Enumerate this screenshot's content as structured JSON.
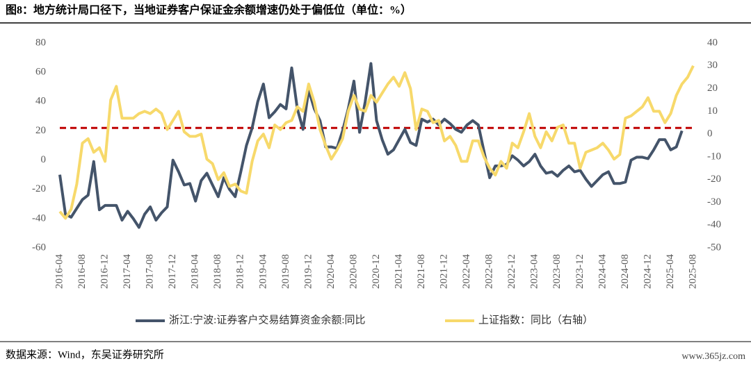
{
  "chart_data": {
    "type": "line",
    "title": "图8：地方统计局口径下，当地证券客户保证金余额增速仍处于偏低位（单位：%）",
    "source": "数据来源：Wind，东吴证券研究所",
    "watermark": "www.365jz.com",
    "categories": [
      "2016-04",
      null,
      null,
      null,
      "2016-08",
      null,
      null,
      null,
      "2016-12",
      null,
      null,
      null,
      "2017-04",
      null,
      null,
      null,
      "2017-08",
      null,
      null,
      null,
      "2017-12",
      null,
      null,
      null,
      "2018-04",
      null,
      null,
      null,
      "2018-08",
      null,
      null,
      null,
      "2018-12",
      null,
      null,
      null,
      "2019-04",
      null,
      null,
      null,
      "2019-08",
      null,
      null,
      null,
      "2019-12",
      null,
      null,
      null,
      "2020-04",
      null,
      null,
      null,
      "2020-08",
      null,
      null,
      null,
      "2020-12",
      null,
      null,
      null,
      "2021-04",
      null,
      null,
      null,
      "2021-08",
      null,
      null,
      null,
      "2021-12",
      null,
      null,
      null,
      "2022-04",
      null,
      null,
      null,
      "2022-08",
      null,
      null,
      null,
      "2022-12",
      null,
      null,
      null,
      "2023-04",
      null,
      null,
      null,
      "2023-08",
      null,
      null,
      null,
      "2023-12",
      null,
      null,
      null,
      "2024-04",
      null,
      null,
      null,
      "2024-08",
      null,
      null,
      null,
      "2024-12",
      null,
      null,
      null,
      "2025-04",
      null,
      null,
      null,
      "2025-08"
    ],
    "series": [
      {
        "name": "浙江:宁波:证券客户交易结算资金余额:同比",
        "color": "#44546a",
        "values": [
          -10,
          -37,
          -39,
          -33,
          -27,
          -24,
          -1,
          -34,
          -31,
          -31,
          -31,
          -41,
          -35,
          -40,
          -46,
          -37,
          -32,
          -41,
          -36,
          -32,
          0,
          -8,
          -17,
          -16,
          -28,
          -14,
          -9,
          -17,
          -25,
          -12,
          -20,
          -25,
          -8,
          10,
          22,
          40,
          52,
          29,
          33,
          38,
          35,
          63,
          35,
          21,
          48,
          35,
          27,
          9,
          9,
          8,
          20,
          35,
          54,
          19,
          40,
          66,
          27,
          14,
          4,
          7,
          14,
          21,
          12,
          10,
          28,
          26,
          28,
          24,
          28,
          25,
          21,
          19,
          24,
          27,
          24,
          6,
          -12,
          -4,
          -4,
          -3,
          3,
          0,
          -4,
          -1,
          4,
          -4,
          -9,
          -8,
          -11,
          -7,
          -4,
          -8,
          -7,
          -13,
          -18,
          -14,
          -10,
          -8,
          -16,
          -16,
          -15,
          0,
          2,
          2,
          1,
          7,
          14,
          14,
          7,
          9,
          20,
          null,
          null
        ]
      },
      {
        "name": "上证指数：同比（右轴）",
        "color": "#f7d96b",
        "axis": "y2",
        "values": [
          -34,
          -37,
          -33,
          -22,
          -4,
          -2,
          -8,
          -6,
          -12,
          15,
          21,
          7,
          7,
          7,
          9,
          10,
          9,
          11,
          9,
          2,
          6,
          10,
          1,
          -1,
          -1,
          0,
          -11,
          -13,
          -20,
          -17,
          -23,
          -22,
          -25,
          -26,
          -12,
          -3,
          0,
          -6,
          4,
          2,
          5,
          6,
          12,
          10,
          22,
          14,
          2,
          -5,
          -11,
          -7,
          -2,
          10,
          17,
          11,
          10,
          17,
          14,
          18,
          22,
          25,
          21,
          27,
          20,
          2,
          11,
          10,
          5,
          6,
          -3,
          -1,
          -5,
          -12,
          -12,
          -3,
          -3,
          -10,
          -15,
          -18,
          -12,
          -15,
          -4,
          -6,
          1,
          9,
          -1,
          -6,
          1,
          -3,
          3,
          4,
          -4,
          -4,
          -15,
          -8,
          -7,
          -6,
          -4,
          -7,
          -11,
          -9,
          7,
          8,
          10,
          12,
          16,
          10,
          10,
          5,
          9,
          17,
          22,
          25,
          30
        ]
      }
    ],
    "reference_line": {
      "value": 22,
      "color": "#c00000"
    },
    "ylim": [
      -60,
      80
    ],
    "yticks": [
      -60,
      -40,
      -20,
      0,
      20,
      40,
      60,
      80
    ],
    "y2lim": [
      -50,
      40
    ],
    "y2ticks": [
      -50,
      -40,
      -30,
      -20,
      -10,
      0,
      10,
      20,
      30,
      40
    ]
  }
}
